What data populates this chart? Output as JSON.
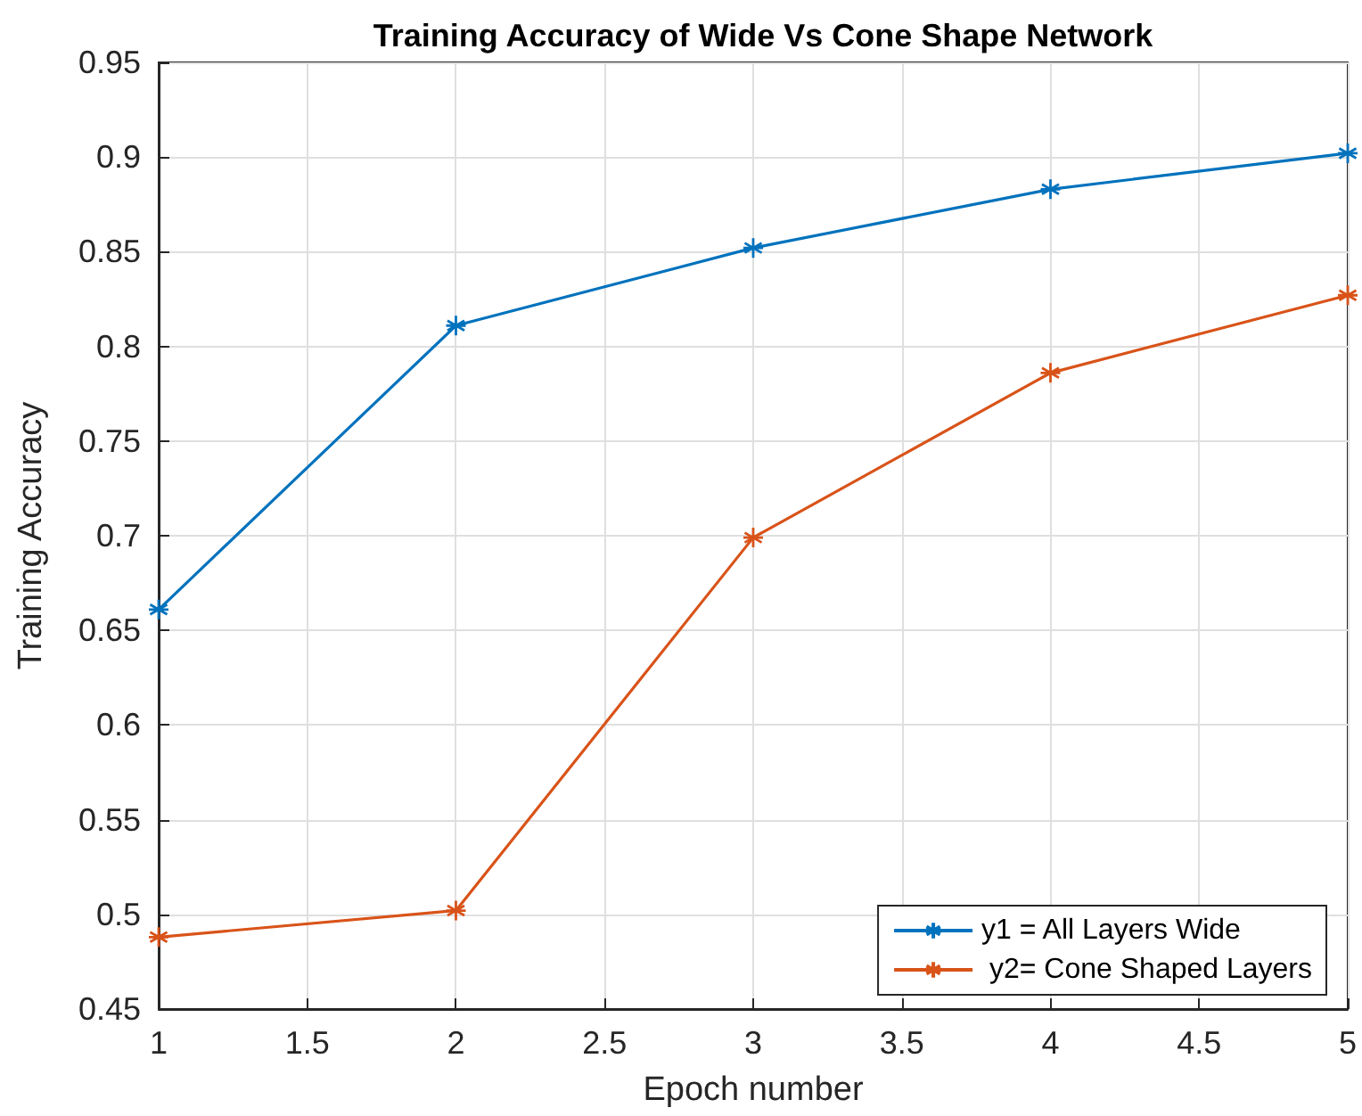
{
  "chart_data": {
    "type": "line",
    "title": "Training Accuracy of Wide Vs Cone Shape Network",
    "xlabel": "Epoch number",
    "ylabel": "Training Accuracy",
    "x": [
      1,
      2,
      3,
      4,
      5
    ],
    "series": [
      {
        "name": "y1 = All Layers Wide",
        "color": "#0072bd",
        "values": [
          0.661,
          0.811,
          0.852,
          0.883,
          0.902
        ]
      },
      {
        "name": " y2= Cone Shaped Layers",
        "color": "#d95319",
        "values": [
          0.488,
          0.502,
          0.699,
          0.786,
          0.827
        ]
      }
    ],
    "xlim": [
      1,
      5
    ],
    "xticks": [
      1,
      1.5,
      2,
      2.5,
      3,
      3.5,
      4,
      4.5,
      5
    ],
    "ylim": [
      0.45,
      0.95
    ],
    "yticks": [
      0.45,
      0.5,
      0.55,
      0.6,
      0.65,
      0.7,
      0.75,
      0.8,
      0.85,
      0.9,
      0.95
    ],
    "grid": true,
    "legend": "bottom right",
    "marker": "cross",
    "line_style": "solid"
  }
}
